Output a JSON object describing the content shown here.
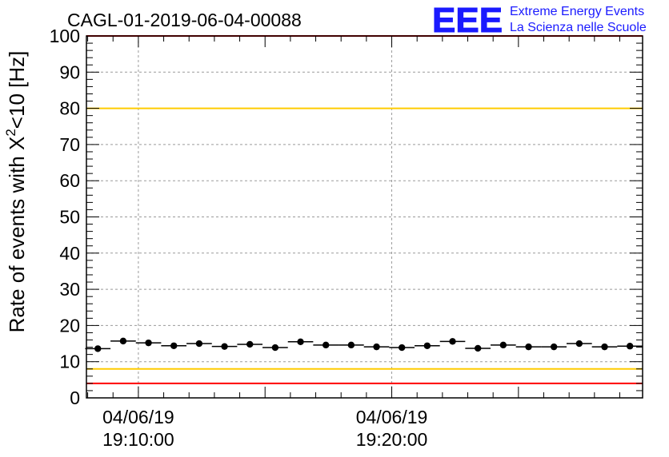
{
  "title": "CAGL-01-2019-06-04-00088",
  "logo": {
    "letters": "EEE",
    "line1": "Extreme Energy Events",
    "line2": "La Scienza nelle Scuole",
    "color": "#1a1aff"
  },
  "chart_data": {
    "type": "scatter",
    "title": "CAGL-01-2019-06-04-00088",
    "ylabel_prefix": "Rate of events with X",
    "ylabel_sup": "2",
    "ylabel_suffix": "<10 [Hz]",
    "ylim": [
      0,
      100
    ],
    "yticks": [
      0,
      10,
      20,
      30,
      40,
      50,
      60,
      70,
      80,
      90,
      100
    ],
    "grid": true,
    "x_tick_labels": [
      {
        "date": "04/06/19",
        "time": "19:10:00",
        "minute": 10
      },
      {
        "date": "04/06/19",
        "time": "19:20:00",
        "minute": 20
      }
    ],
    "reference_lines": [
      {
        "value": 100,
        "color": "#ff0000"
      },
      {
        "value": 80,
        "color": "#ffcc00"
      },
      {
        "value": 8,
        "color": "#ffcc00"
      },
      {
        "value": 4,
        "color": "#ff0000"
      }
    ],
    "bin_width_minutes": 1,
    "x_minutes": [
      8.4,
      9.4,
      10.4,
      11.4,
      12.4,
      13.4,
      14.4,
      15.4,
      16.4,
      17.4,
      18.4,
      19.4,
      20.4,
      21.4,
      22.4,
      23.4,
      24.4,
      25.4,
      26.4,
      27.4,
      28.4,
      29.4
    ],
    "values": [
      13.6,
      15.7,
      15.2,
      14.4,
      15.0,
      14.2,
      14.8,
      13.9,
      15.5,
      14.6,
      14.6,
      14.1,
      13.9,
      14.4,
      15.6,
      13.7,
      14.6,
      14.1,
      14.1,
      15.0,
      14.1,
      14.3
    ],
    "marker_color": "#000000"
  }
}
